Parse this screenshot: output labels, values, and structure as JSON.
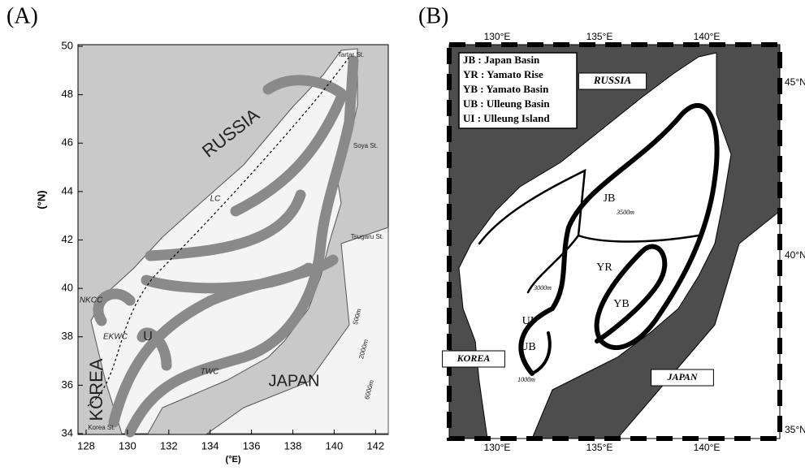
{
  "panels": [
    {
      "label": "(A)",
      "y_axis_title": "(°N)",
      "x_axis_title": "(°E)",
      "y_ticks": [
        "34",
        "36",
        "38",
        "40",
        "42",
        "44",
        "46",
        "48",
        "50"
      ],
      "x_ticks": [
        "128",
        "130",
        "132",
        "134",
        "136",
        "138",
        "140",
        "142"
      ],
      "places": [
        "RUSSIA",
        "KOREA",
        "JAPAN",
        "LC",
        "NKCC",
        "EKWC",
        "U",
        "TWC",
        "Tartar St.",
        "Soya St.",
        "Tsugaru St.",
        "Korea St.",
        "500m",
        "2000m",
        "6000m"
      ]
    },
    {
      "label": "(B)",
      "x_ticks": [
        "130°E",
        "135°E",
        "140°E"
      ],
      "y_ticks": [
        "45°N",
        "40°N",
        "35°N"
      ],
      "legend": [
        "JB : Japan Basin",
        "YR : Yamato Rise",
        "YB : Yamato Basin",
        "UB : Ulleung Basin",
        "UI : Ulleung Island"
      ],
      "places": [
        "RUSSIA",
        "KOREA",
        "JAPAN",
        "JB",
        "YR",
        "YB",
        "UB",
        "UI",
        "3500m",
        "3000m",
        "1000m"
      ]
    }
  ]
}
